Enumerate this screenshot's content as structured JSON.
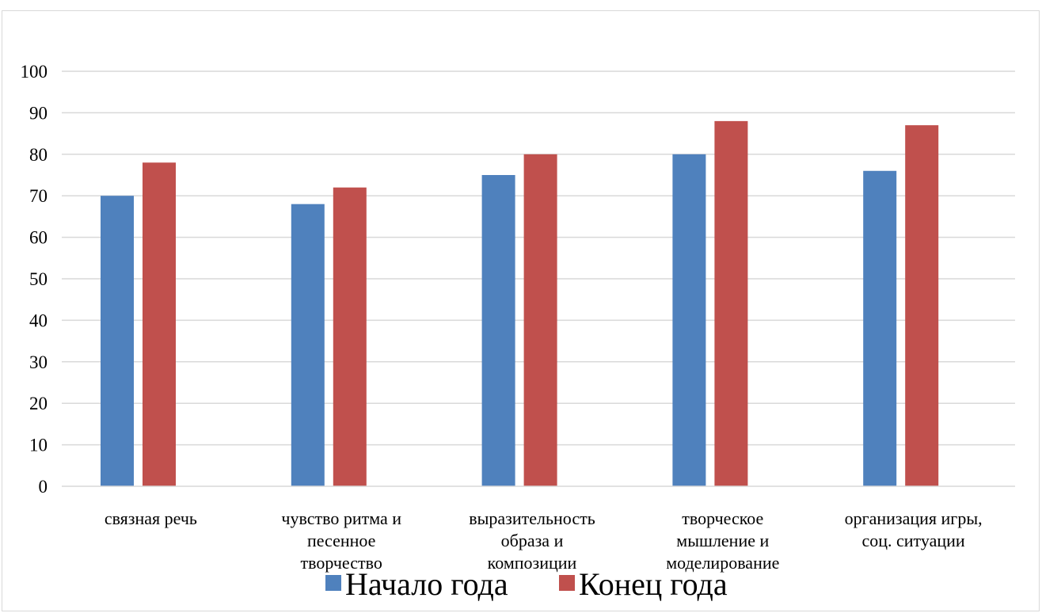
{
  "chart_data": {
    "type": "bar",
    "title": "",
    "xlabel": "",
    "ylabel": "",
    "categories": [
      [
        "связная речь"
      ],
      [
        "чувство ритма и",
        "песенное",
        "творчество"
      ],
      [
        "выразительность",
        "образа и",
        "композиции"
      ],
      [
        "творческое",
        "мышление и",
        "моделирование"
      ],
      [
        "организация игры,",
        "соц. ситуации"
      ]
    ],
    "series": [
      {
        "name": "Начало года",
        "color": "#4f81bd",
        "values": [
          70,
          68,
          75,
          80,
          76
        ]
      },
      {
        "name": "Конец года",
        "color": "#c0504d",
        "values": [
          78,
          72,
          80,
          88,
          87
        ]
      }
    ],
    "ylim": [
      0,
      100
    ],
    "yticks": [
      0,
      10,
      20,
      30,
      40,
      50,
      60,
      70,
      80,
      90,
      100
    ],
    "grid": true,
    "legend": "bottom"
  }
}
